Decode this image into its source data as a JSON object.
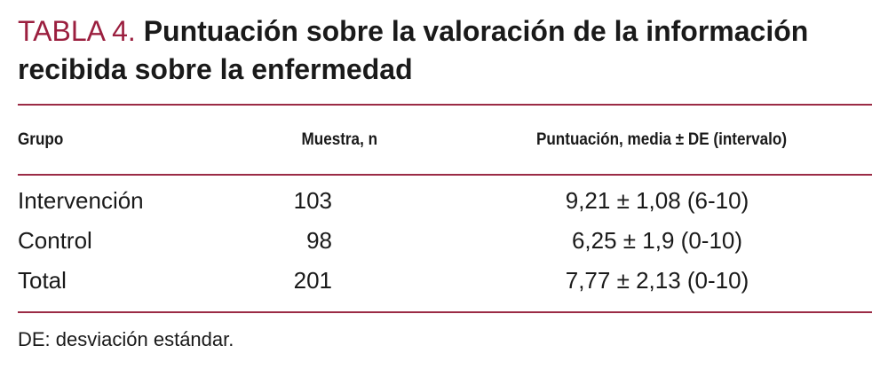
{
  "title": {
    "label": "TABLA 4.",
    "text": "Puntuación sobre la valoración de la información recibida sobre la enfermedad"
  },
  "table": {
    "header": [
      "Grupo",
      "Muestra, n",
      "Puntuación, media ± DE (intervalo)"
    ],
    "rows": [
      [
        "Intervención",
        "103",
        "9,21 ± 1,08 (6-10)"
      ],
      [
        "Control",
        "98",
        "6,25 ± 1,9 (0-10)"
      ],
      [
        "Total",
        "201",
        "7,77 ± 2,13 (0-10)"
      ]
    ]
  },
  "footnote": "DE: desviación estándar."
}
